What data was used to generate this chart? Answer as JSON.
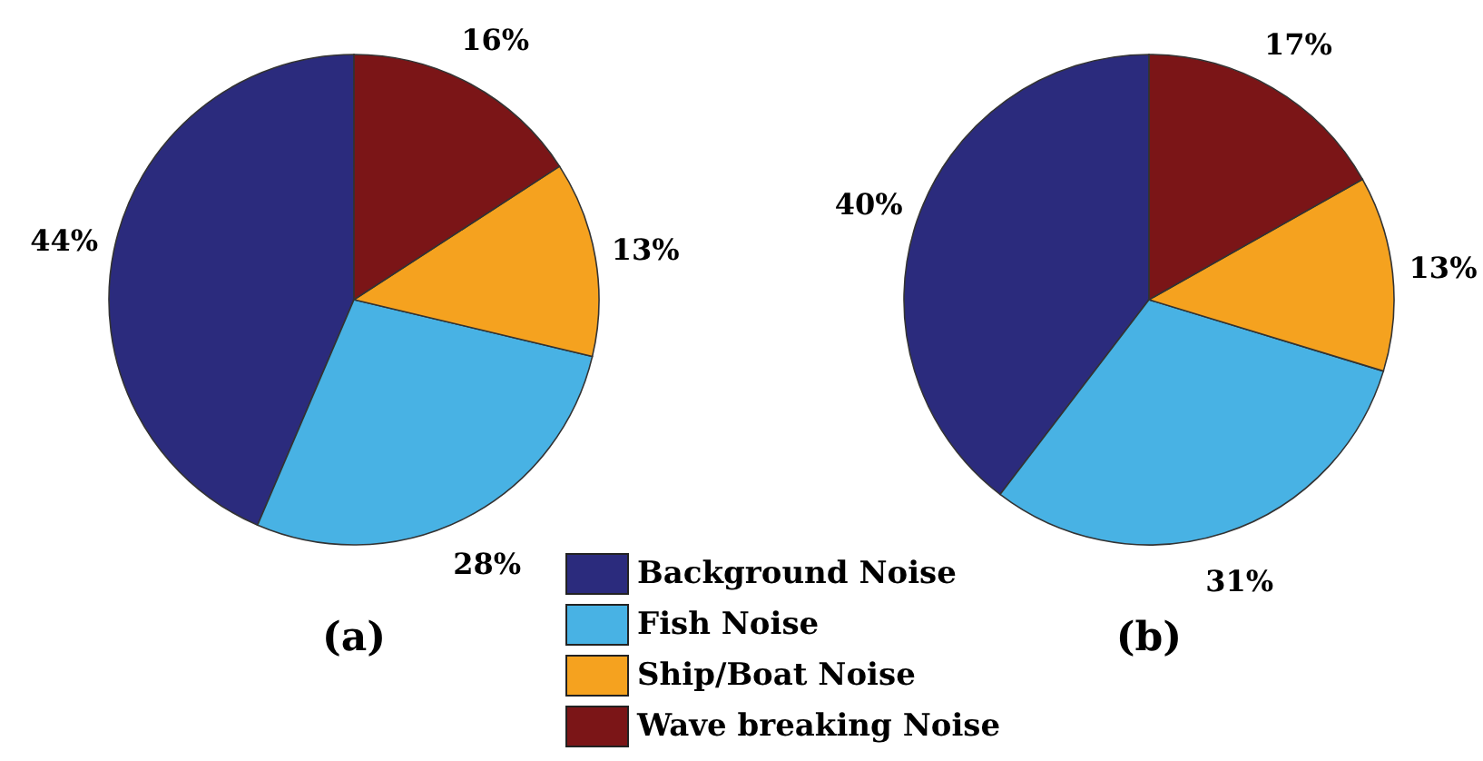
{
  "chart_data": [
    {
      "type": "pie",
      "title": "(a)",
      "categories": [
        "Background Noise",
        "Fish Noise",
        "Ship/Boat Noise",
        "Wave breaking Noise"
      ],
      "values": [
        44,
        28,
        13,
        16
      ],
      "value_labels": [
        "44%",
        "28%",
        "13%",
        "16%"
      ],
      "colors": [
        "#2b2b7d",
        "#48b2e4",
        "#f5a21f",
        "#7b1517"
      ],
      "legend": "bottom right"
    },
    {
      "type": "pie",
      "title": "(b)",
      "categories": [
        null,
        null,
        null,
        null
      ],
      "values": [
        40,
        31,
        13,
        17
      ],
      "value_labels": [
        "40%",
        "31%",
        "13%",
        "17%"
      ],
      "colors": [
        "#2b2b7d",
        "#48b2e4",
        "#f5a21f",
        "#7b1517"
      ]
    }
  ]
}
